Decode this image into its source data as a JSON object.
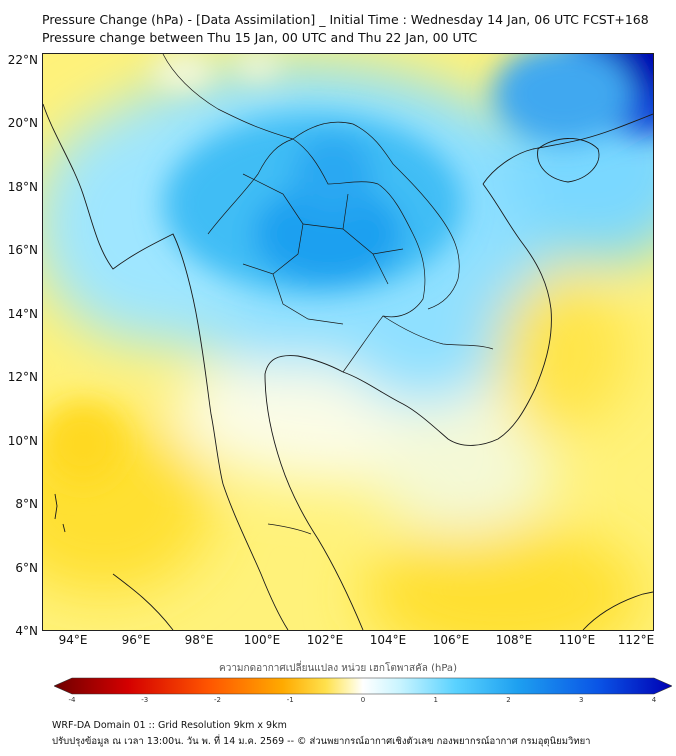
{
  "title_line1": "Pressure Change (hPa) - [Data Assimilation] _ Initial Time : Wednesday 14 Jan, 06 UTC FCST+168",
  "title_line2": "Pressure change between Thu 15 Jan, 00 UTC and Thu 22 Jan, 00 UTC",
  "lat_labels": [
    "22°N",
    "20°N",
    "18°N",
    "16°N",
    "14°N",
    "12°N",
    "10°N",
    "8°N",
    "6°N",
    "4°N"
  ],
  "lon_labels": [
    "94°E",
    "96°E",
    "98°E",
    "100°E",
    "102°E",
    "104°E",
    "106°E",
    "108°E",
    "110°E",
    "112°E"
  ],
  "colorbar": {
    "label": "ความกดอากาศเปลี่ยนแปลง หน่วย เฮกโตพาสคัล (hPa)",
    "ticks": [
      "-4",
      "-3",
      "-2",
      "-1",
      "0",
      "1",
      "2",
      "3",
      "4"
    ],
    "range": [
      -4,
      4
    ],
    "colors": [
      "#6e0000",
      "#d40000",
      "#ff5500",
      "#ffaa00",
      "#ffe14d",
      "#fff7bf",
      "#ffffff",
      "#c8f4ff",
      "#5ad2ff",
      "#1ea0f0",
      "#0a55e6",
      "#0000b4"
    ]
  },
  "footer_line1": "WRF-DA Domain 01 :: Grid Resolution 9km x 9km",
  "footer_line2": "ปรับปรุงข้อมูล ณ เวลา 13:00น. วัน พ. ที่ 14 ม.ค. 2569 -- © ส่วนพยากรณ์อากาศเชิงตัวเลข กองพยากรณ์อากาศ กรมอุตุนิยมวิทยา",
  "colors": {
    "positive_max": "#0000b4",
    "positive_mid": "#1ea0f0",
    "near_zero": "#ffffff",
    "negative_mild": "#ffe14d",
    "coastline": "#1a1a1a"
  }
}
